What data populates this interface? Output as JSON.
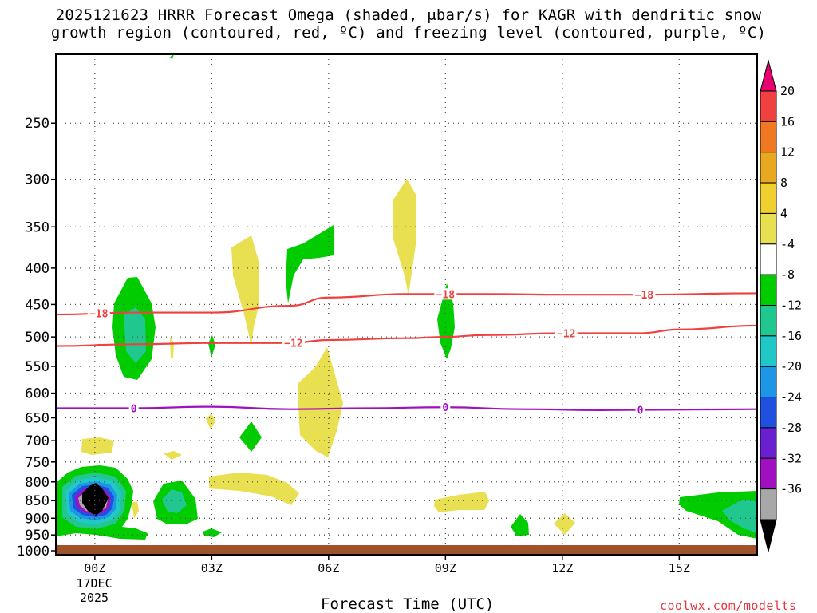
{
  "title_line1": "2025121623 HRRR Forecast Omega (shaded, μbar/s) for KAGR with dendritic snow",
  "title_line2": "growth region (contoured, red, ºC) and freezing level (contoured, purple, ºC)",
  "credit": "coolwx.com/modelts",
  "chart_data": {
    "type": "time-height contour",
    "xlabel": "Forecast Time (UTC)",
    "x_ticks": [
      "00Z",
      "03Z",
      "06Z",
      "09Z",
      "12Z",
      "15Z"
    ],
    "x_tick_hours": [
      0,
      3,
      6,
      9,
      12,
      15
    ],
    "x_range_hours": [
      -1,
      17
    ],
    "date_label": [
      "17DEC",
      "2025"
    ],
    "ylabel": "",
    "y_ticks": [
      250,
      300,
      350,
      400,
      450,
      500,
      550,
      600,
      650,
      700,
      750,
      800,
      850,
      900,
      950,
      1000
    ],
    "y_range_mb": [
      200,
      1013
    ],
    "y_scale": "log-pressure",
    "grid": true,
    "colorbar": {
      "labels": [
        "20",
        "16",
        "12",
        "8",
        "4",
        "-4",
        "-8",
        "-12",
        "-16",
        "-20",
        "-24",
        "-28",
        "-32",
        "-36"
      ],
      "colors": [
        "#e8006e",
        "#f04040",
        "#f07820",
        "#e8a820",
        "#f0d030",
        "#e8e050",
        "#ffffff",
        "#00cc00",
        "#20c890",
        "#20c8c8",
        "#1e96e6",
        "#2050e0",
        "#6a20d0",
        "#a010c0",
        "#a8a8a8",
        "#000000"
      ]
    },
    "contours": [
      {
        "name": "-18",
        "color": "#f04040",
        "points": [
          [
            -1,
            465
          ],
          [
            1,
            462
          ],
          [
            3,
            462
          ],
          [
            5,
            452
          ],
          [
            6,
            440
          ],
          [
            8,
            435
          ],
          [
            10,
            435
          ],
          [
            12,
            436
          ],
          [
            14,
            436
          ],
          [
            17,
            434
          ]
        ],
        "labels": [
          [
            0.1,
            -18
          ],
          [
            9.0,
            -18
          ],
          [
            14.1,
            -18
          ]
        ]
      },
      {
        "name": "-12",
        "color": "#f04040",
        "points": [
          [
            -1,
            515
          ],
          [
            1,
            512
          ],
          [
            3,
            510
          ],
          [
            5,
            510
          ],
          [
            6,
            505
          ],
          [
            8,
            502
          ],
          [
            9,
            500
          ],
          [
            10,
            497
          ],
          [
            12,
            494
          ],
          [
            14,
            494
          ],
          [
            15,
            488
          ],
          [
            17,
            482
          ]
        ],
        "labels": [
          [
            5.1,
            -12
          ],
          [
            12.1,
            -12
          ]
        ]
      },
      {
        "name": "0",
        "color": "#a010c0",
        "points": [
          [
            -1,
            630
          ],
          [
            1,
            630
          ],
          [
            3,
            627
          ],
          [
            5,
            632
          ],
          [
            7,
            630
          ],
          [
            9,
            628
          ],
          [
            11,
            632
          ],
          [
            13,
            634
          ],
          [
            15,
            633
          ],
          [
            17,
            632
          ]
        ],
        "labels": [
          [
            1.0,
            0
          ],
          [
            9.0,
            0
          ],
          [
            14.0,
            0
          ]
        ]
      }
    ],
    "omega_features": [
      {
        "kind": "ascent-core",
        "center": [
          0,
          880
        ],
        "peak": -36
      },
      {
        "kind": "ascent",
        "center": [
          1,
          510
        ],
        "value": -8
      },
      {
        "kind": "ascent",
        "center": [
          2.1,
          885
        ],
        "value": -8
      },
      {
        "kind": "ascent",
        "center": [
          5.3,
          410
        ],
        "value": -4
      },
      {
        "kind": "ascent",
        "center": [
          9.0,
          495
        ],
        "value": -4
      },
      {
        "kind": "ascent",
        "center": [
          16.3,
          890
        ],
        "value": -8
      },
      {
        "kind": "descent",
        "center": [
          4.2,
          440
        ],
        "value": 4
      },
      {
        "kind": "descent",
        "center": [
          7.9,
          360
        ],
        "value": 4
      },
      {
        "kind": "descent",
        "center": [
          6.4,
          640
        ],
        "value": 4
      },
      {
        "kind": "descent",
        "center": [
          3.9,
          860
        ],
        "value": 4
      },
      {
        "kind": "descent",
        "center": [
          9.4,
          885
        ],
        "value": 4
      }
    ]
  }
}
